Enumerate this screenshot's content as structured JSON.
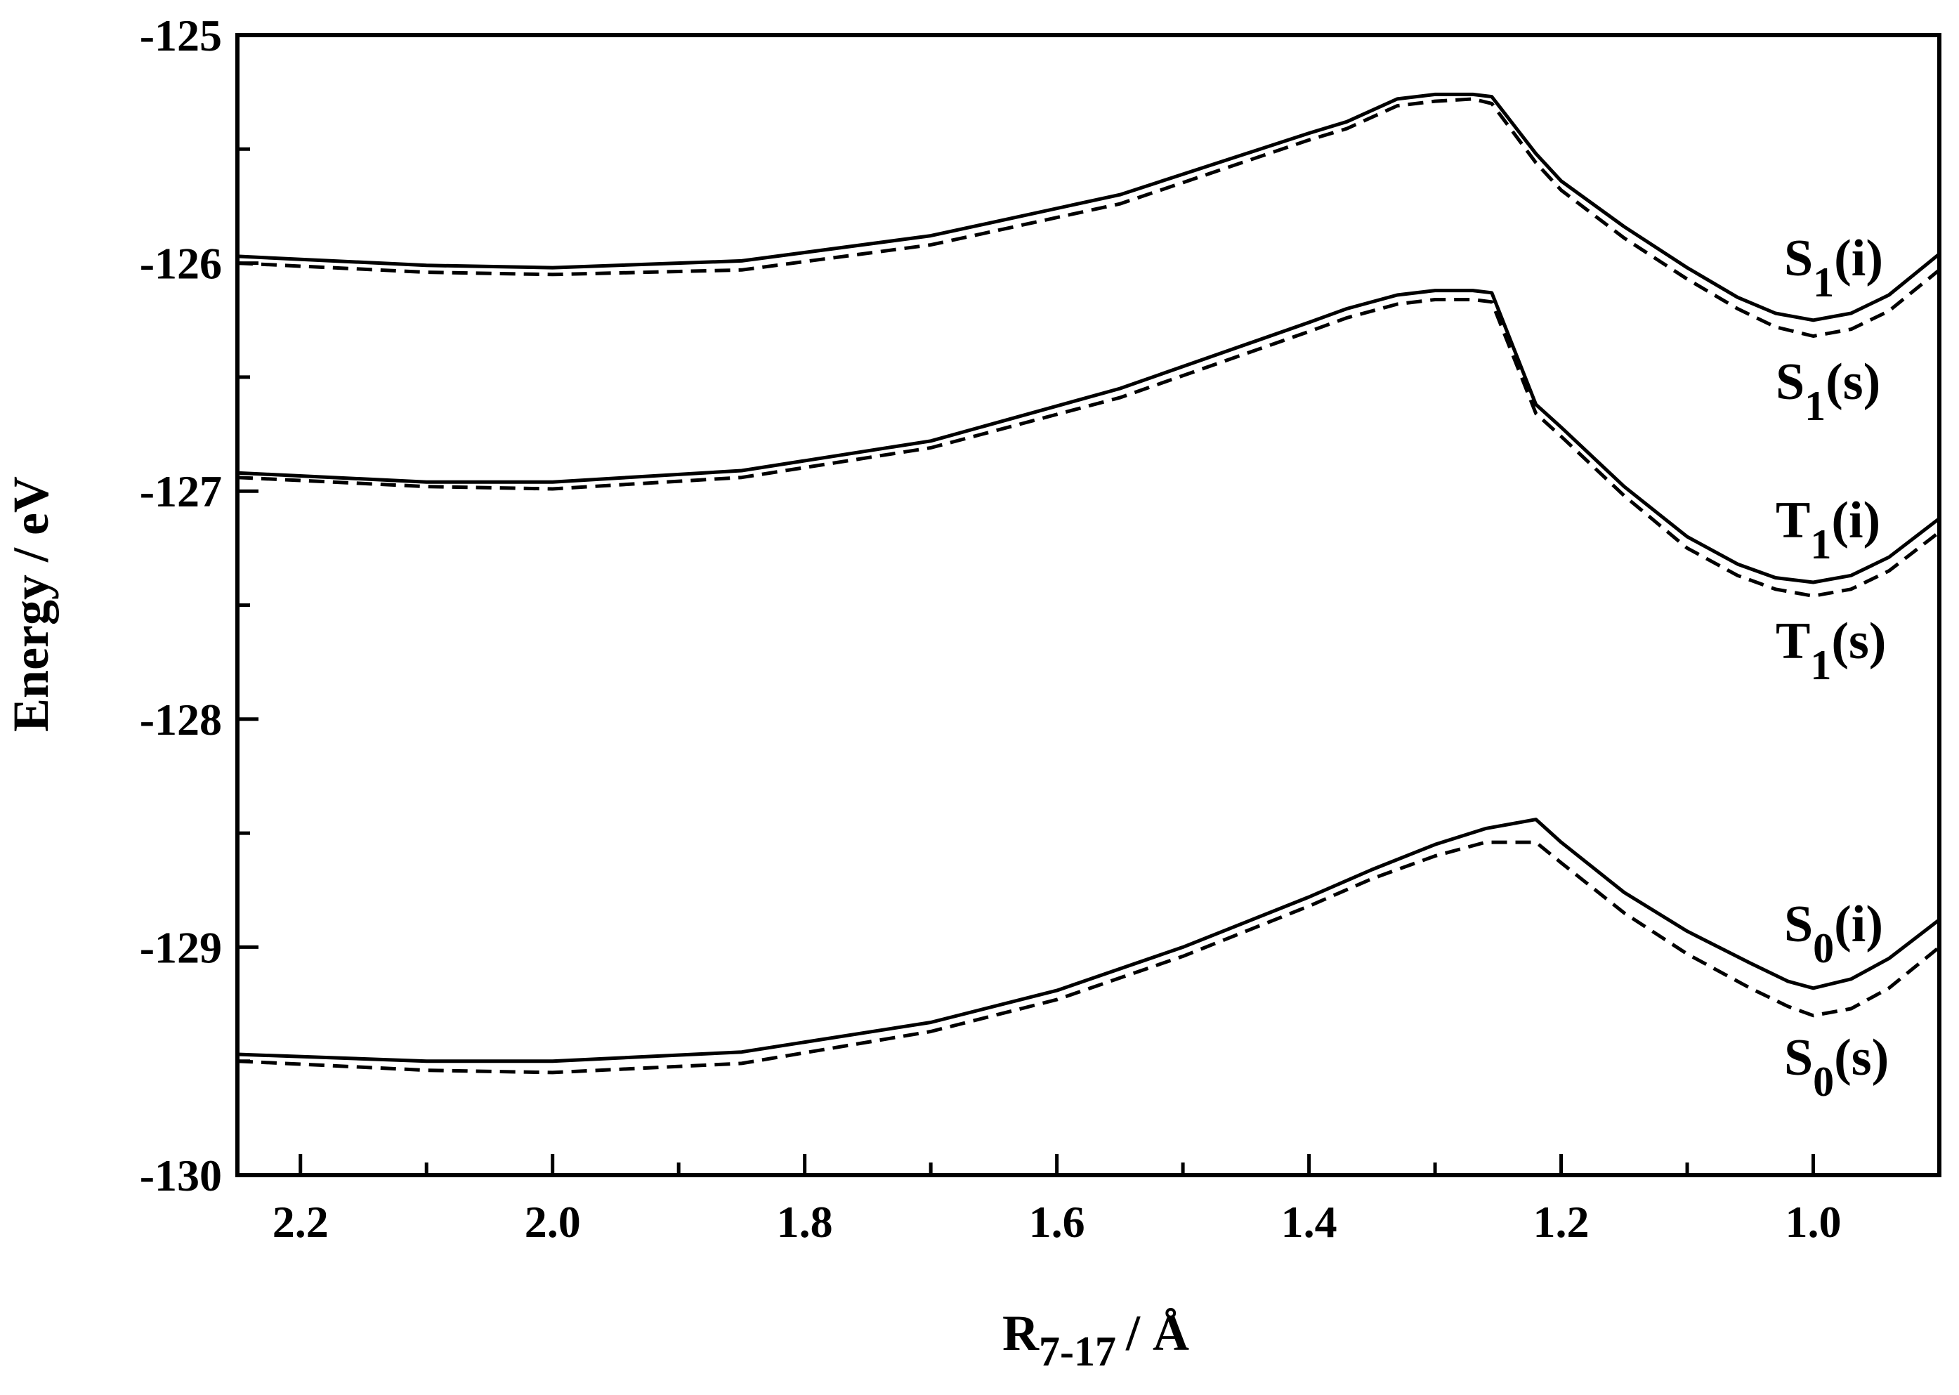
{
  "chart_data": {
    "type": "line",
    "xlabel": {
      "main": "R",
      "sub": "7-17",
      "unit": "/ Å"
    },
    "ylabel": "Energy / eV",
    "xlim": [
      2.25,
      0.9
    ],
    "ylim": [
      -130,
      -125
    ],
    "x_reversed": true,
    "x_ticks": [
      "2.2",
      "2.0",
      "1.8",
      "1.6",
      "1.4",
      "1.2",
      "1.0"
    ],
    "y_ticks": [
      "-125",
      "-126",
      "-127",
      "-128",
      "-129",
      "-130"
    ],
    "series": [
      {
        "name": "S1(i)",
        "label": {
          "base": "S",
          "sub": "1",
          "tail": "(i)"
        },
        "style": "solid",
        "x": [
          2.25,
          2.1,
          2.0,
          1.85,
          1.7,
          1.55,
          1.4,
          1.37,
          1.33,
          1.3,
          1.27,
          1.255,
          1.22,
          1.2,
          1.15,
          1.1,
          1.06,
          1.03,
          1.0,
          0.97,
          0.94,
          0.9
        ],
        "y": [
          -125.97,
          -126.01,
          -126.02,
          -125.99,
          -125.88,
          -125.7,
          -125.43,
          -125.38,
          -125.28,
          -125.26,
          -125.26,
          -125.27,
          -125.52,
          -125.64,
          -125.84,
          -126.02,
          -126.15,
          -126.22,
          -126.25,
          -126.22,
          -126.14,
          -125.96
        ]
      },
      {
        "name": "S1(s)",
        "label": {
          "base": "S",
          "sub": "1",
          "tail": "(s)"
        },
        "style": "dashed",
        "x": [
          2.25,
          2.1,
          2.0,
          1.85,
          1.7,
          1.55,
          1.4,
          1.37,
          1.33,
          1.3,
          1.27,
          1.255,
          1.22,
          1.2,
          1.15,
          1.1,
          1.06,
          1.03,
          1.0,
          0.97,
          0.94,
          0.9
        ],
        "y": [
          -126.0,
          -126.04,
          -126.05,
          -126.03,
          -125.92,
          -125.74,
          -125.46,
          -125.41,
          -125.31,
          -125.29,
          -125.28,
          -125.3,
          -125.56,
          -125.68,
          -125.89,
          -126.07,
          -126.2,
          -126.28,
          -126.32,
          -126.29,
          -126.21,
          -126.03
        ]
      },
      {
        "name": "T1(i)",
        "label": {
          "base": "T",
          "sub": "1",
          "tail": "(i)"
        },
        "style": "solid",
        "x": [
          2.25,
          2.1,
          2.0,
          1.85,
          1.7,
          1.55,
          1.4,
          1.37,
          1.33,
          1.3,
          1.27,
          1.255,
          1.22,
          1.2,
          1.15,
          1.1,
          1.06,
          1.03,
          1.0,
          0.97,
          0.94,
          0.9
        ],
        "y": [
          -126.92,
          -126.96,
          -126.96,
          -126.91,
          -126.78,
          -126.55,
          -126.26,
          -126.2,
          -126.14,
          -126.12,
          -126.12,
          -126.13,
          -126.62,
          -126.72,
          -126.98,
          -127.2,
          -127.32,
          -127.38,
          -127.4,
          -127.37,
          -127.29,
          -127.12
        ]
      },
      {
        "name": "T1(s)",
        "label": {
          "base": "T",
          "sub": "1",
          "tail": "(s)"
        },
        "style": "dashed",
        "x": [
          2.25,
          2.1,
          2.0,
          1.85,
          1.7,
          1.55,
          1.4,
          1.37,
          1.33,
          1.3,
          1.27,
          1.255,
          1.22,
          1.2,
          1.15,
          1.1,
          1.06,
          1.03,
          1.0,
          0.97,
          0.94,
          0.9
        ],
        "y": [
          -126.94,
          -126.98,
          -126.99,
          -126.94,
          -126.81,
          -126.59,
          -126.3,
          -126.24,
          -126.18,
          -126.16,
          -126.16,
          -126.17,
          -126.66,
          -126.76,
          -127.02,
          -127.25,
          -127.37,
          -127.43,
          -127.46,
          -127.43,
          -127.35,
          -127.18
        ]
      },
      {
        "name": "S0(i)",
        "label": {
          "base": "S",
          "sub": "0",
          "tail": "(i)"
        },
        "style": "solid",
        "x": [
          2.25,
          2.1,
          2.0,
          1.85,
          1.7,
          1.6,
          1.5,
          1.4,
          1.35,
          1.3,
          1.26,
          1.22,
          1.2,
          1.15,
          1.1,
          1.05,
          1.02,
          1.0,
          0.97,
          0.94,
          0.9
        ],
        "y": [
          -129.47,
          -129.5,
          -129.5,
          -129.46,
          -129.33,
          -129.19,
          -129.0,
          -128.78,
          -128.66,
          -128.55,
          -128.48,
          -128.44,
          -128.54,
          -128.76,
          -128.93,
          -129.07,
          -129.15,
          -129.18,
          -129.14,
          -129.05,
          -128.88
        ]
      },
      {
        "name": "S0(s)",
        "label": {
          "base": "S",
          "sub": "0",
          "tail": "(s)"
        },
        "style": "dashed",
        "x": [
          2.25,
          2.1,
          2.0,
          1.85,
          1.7,
          1.6,
          1.5,
          1.4,
          1.35,
          1.3,
          1.26,
          1.22,
          1.2,
          1.15,
          1.1,
          1.05,
          1.02,
          1.0,
          0.97,
          0.94,
          0.9
        ],
        "y": [
          -129.5,
          -129.54,
          -129.55,
          -129.51,
          -129.37,
          -129.23,
          -129.04,
          -128.82,
          -128.7,
          -128.6,
          -128.54,
          -128.54,
          -128.63,
          -128.85,
          -129.03,
          -129.18,
          -129.26,
          -129.3,
          -129.27,
          -129.18,
          -129.0
        ]
      }
    ]
  }
}
